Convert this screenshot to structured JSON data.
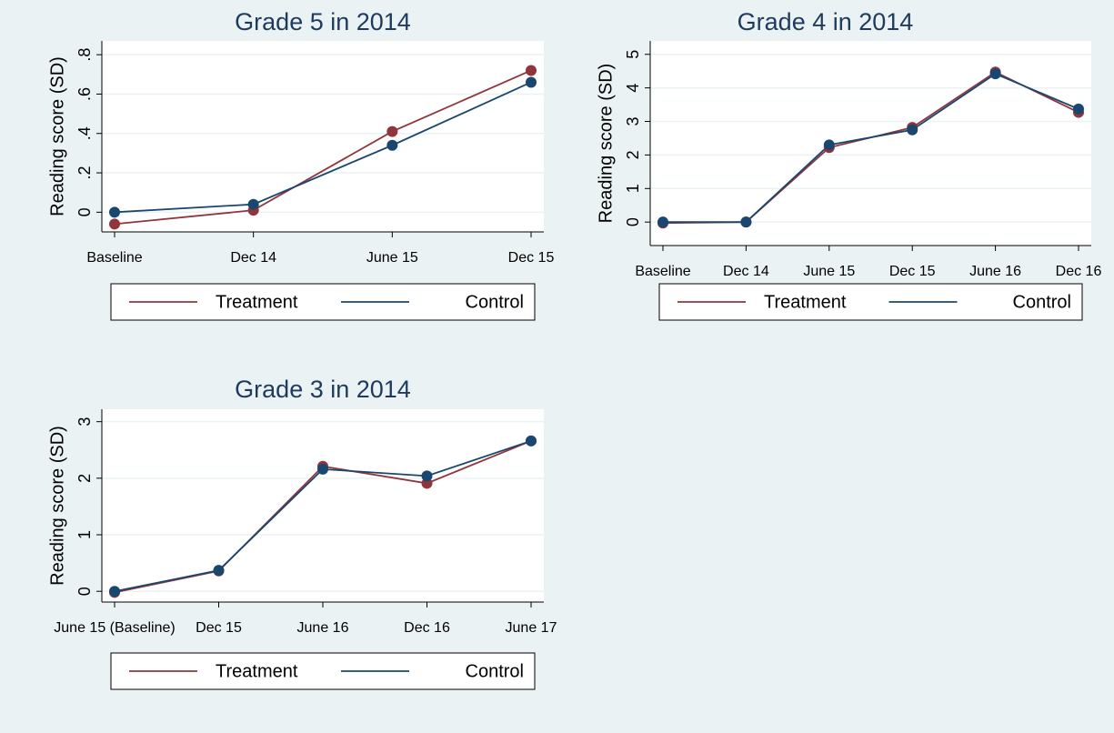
{
  "chart_data": [
    {
      "type": "line",
      "title": "Grade 5 in 2014",
      "y_label": "Reading score (SD)",
      "categories": [
        "Baseline",
        "Dec 14",
        "June 15",
        "Dec 15"
      ],
      "series": [
        {
          "name": "Treatment",
          "color": "#90353b",
          "values": [
            -0.06,
            0.01,
            0.41,
            0.72
          ]
        },
        {
          "name": "Control",
          "color": "#1a476f",
          "values": [
            0.0,
            0.04,
            0.34,
            0.66
          ]
        }
      ],
      "ylim": [
        -0.1,
        0.87
      ],
      "yticks": [
        0,
        {
          "value": 0.2,
          "label": ".2"
        },
        {
          "value": 0.4,
          "label": ".4"
        },
        {
          "value": 0.6,
          "label": ".6"
        },
        {
          "value": 0.8,
          "label": ".8"
        }
      ],
      "grid": true
    },
    {
      "type": "line",
      "title": "Grade 4 in 2014",
      "y_label": "Reading score (SD)",
      "categories": [
        "Baseline",
        "Dec 14",
        "June 15",
        "Dec 15",
        "June 16",
        "Dec 16"
      ],
      "series": [
        {
          "name": "Treatment",
          "color": "#90353b",
          "values": [
            -0.03,
            0.0,
            2.22,
            2.82,
            4.47,
            3.27
          ]
        },
        {
          "name": "Control",
          "color": "#1a476f",
          "values": [
            0.0,
            0.0,
            2.3,
            2.75,
            4.42,
            3.37
          ]
        }
      ],
      "ylim": [
        -0.7,
        5.4
      ],
      "yticks": [
        0,
        1,
        2,
        3,
        4,
        5
      ],
      "grid": true
    },
    {
      "type": "line",
      "title": "Grade 3 in 2014",
      "y_label": "Reading score (SD)",
      "categories": [
        "June 15 (Baseline)",
        "Dec 15",
        "June 16",
        "Dec 16",
        "June 17"
      ],
      "series": [
        {
          "name": "Treatment",
          "color": "#90353b",
          "values": [
            -0.02,
            0.36,
            2.21,
            1.91,
            2.66
          ]
        },
        {
          "name": "Control",
          "color": "#1a476f",
          "values": [
            0.0,
            0.37,
            2.16,
            2.04,
            2.66
          ]
        }
      ],
      "ylim": [
        -0.19,
        3.22
      ],
      "yticks": [
        0,
        1,
        2,
        3
      ],
      "grid": true
    }
  ]
}
